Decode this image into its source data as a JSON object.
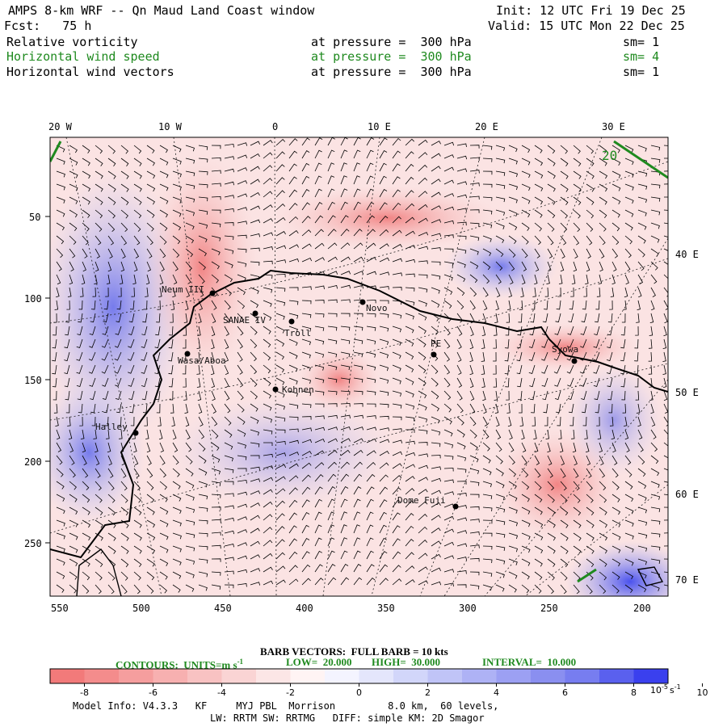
{
  "header": {
    "title": "AMPS 8-km WRF -- Qn Maud Land Coast window",
    "init": "Init: 12 UTC Fri 19 Dec 25",
    "fcst": "Fcst:   75 h",
    "valid": "Valid: 15 UTC Mon 22 Dec 25",
    "fields": [
      {
        "name": "Relative vorticity",
        "level": "at pressure =  300 hPa",
        "sm": "sm= 1",
        "color": "#000000"
      },
      {
        "name": "Horizontal wind speed",
        "level": "at pressure =  300 hPa",
        "sm": "sm= 4",
        "color": "#1f8a1f"
      },
      {
        "name": "Horizontal wind vectors",
        "level": "at pressure =  300 hPa",
        "sm": "sm= 1",
        "color": "#000000"
      }
    ]
  },
  "map": {
    "top_lon_labels": [
      "20 W",
      "10 W",
      "0",
      "10 E",
      "20 E",
      "30 E"
    ],
    "right_lon_labels": [
      "40 E",
      "50 E",
      "60 E",
      "70 E"
    ],
    "left_y_ticks": [
      "50",
      "100",
      "150",
      "200",
      "250"
    ],
    "bottom_x_ticks": [
      "550",
      "500",
      "450",
      "400",
      "350",
      "300",
      "250",
      "200"
    ],
    "contour_label": "20",
    "stations": [
      "Neum III",
      "SANAE IV",
      "Troll",
      "Novo",
      "PE",
      "Syowa",
      "Wasa/Aboa",
      "Kohnen",
      "Halley",
      "Dome Fuji"
    ]
  },
  "legend": {
    "barb": "BARB VECTORS:  FULL BARB = 10 kts",
    "contours": "CONTOURS:  UNITS=m s",
    "contours_sup": "-1",
    "low": "LOW=  20.000",
    "high": "HIGH=  30.000",
    "interval": "INTERVAL=  10.000"
  },
  "colorbar": {
    "ticks": [
      "-8",
      "-6",
      "-4",
      "-2",
      "0",
      "2",
      "4",
      "6",
      "8",
      "10"
    ],
    "units_base": "10",
    "units_exp1": "-5",
    "units_unit": "s",
    "units_exp2": "-1",
    "colors": [
      "#f27a7a",
      "#f48c8c",
      "#f59e9e",
      "#f7b0b0",
      "#f8c2c2",
      "#fad4d4",
      "#fce6e6",
      "#fff4f4",
      "#f4f4ff",
      "#e4e6fc",
      "#d2d6fa",
      "#c0c4f7",
      "#aeb2f5",
      "#9ca0f3",
      "#8a8ff0",
      "#777df0",
      "#5a60ee",
      "#3a40ee"
    ]
  },
  "footer": {
    "line1": "Model Info: V4.3.3   KF     MYJ PBL  Morrison         8.0 km,  60 levels,",
    "line2": "LW: RRTM SW: RRTMG   DIFF: simple KM: 2D Smagor"
  }
}
